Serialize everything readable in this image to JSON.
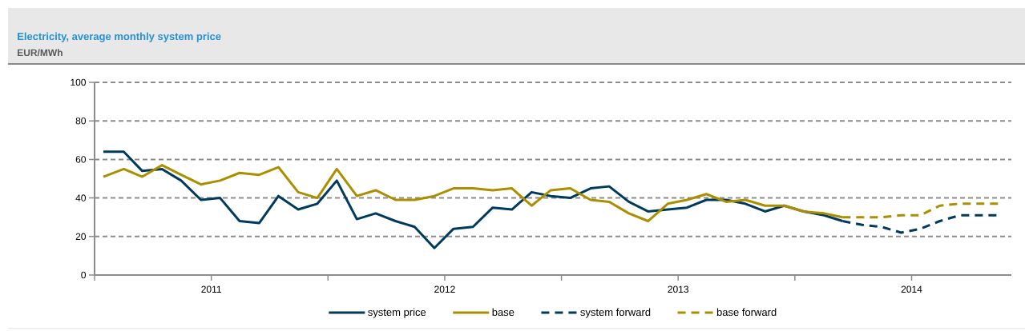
{
  "chart_data": {
    "type": "line",
    "title": "Electricity, average monthly system price",
    "subtitle": "EUR/MWh",
    "xlim": [
      "2011-01-01",
      "2014-12-05"
    ],
    "xticks": [
      {
        "value": "2011-01-01",
        "label": null
      },
      {
        "value": "2011-07-01",
        "label": "2011"
      },
      {
        "value": "2012-01-01",
        "label": null
      },
      {
        "value": "2012-07-01",
        "label": "2012"
      },
      {
        "value": "2013-01-01",
        "label": null
      },
      {
        "value": "2013-07-01",
        "label": "2013"
      },
      {
        "value": "2014-01-01",
        "label": null
      },
      {
        "value": "2014-07-01",
        "label": "2014"
      }
    ],
    "ylim": [
      0,
      100
    ],
    "yticks": [
      0,
      20,
      40,
      60,
      80,
      100
    ],
    "grid": "y",
    "legend": "bottom",
    "series": [
      {
        "name": "system price",
        "color": "#003a5c",
        "line_style": "solid",
        "x": [
          "2011-01-15",
          "2011-02-15",
          "2011-03-15",
          "2011-04-15",
          "2011-05-15",
          "2011-06-15",
          "2011-07-15",
          "2011-08-15",
          "2011-09-15",
          "2011-10-15",
          "2011-11-15",
          "2011-12-15",
          "2012-01-15",
          "2012-02-15",
          "2012-03-15",
          "2012-04-15",
          "2012-05-15",
          "2012-06-15",
          "2012-07-15",
          "2012-08-15",
          "2012-09-15",
          "2012-10-15",
          "2012-11-15",
          "2012-12-15",
          "2013-01-15",
          "2013-02-15",
          "2013-03-15",
          "2013-04-15",
          "2013-05-15",
          "2013-06-15",
          "2013-07-15",
          "2013-08-15",
          "2013-09-15",
          "2013-10-15",
          "2013-11-15",
          "2013-12-15",
          "2014-01-15",
          "2014-02-15",
          "2014-03-15"
        ],
        "values": [
          64,
          64,
          54,
          55,
          49,
          39,
          40,
          28,
          27,
          41,
          34,
          37,
          49,
          29,
          32,
          28,
          25,
          14,
          24,
          25,
          35,
          34,
          43,
          41,
          40,
          45,
          46,
          38,
          33,
          34,
          35,
          39,
          39,
          37,
          33,
          36,
          33,
          31,
          28
        ]
      },
      {
        "name": "base",
        "color": "#ab8f00",
        "line_style": "solid",
        "x": [
          "2011-01-15",
          "2011-02-15",
          "2011-03-15",
          "2011-04-15",
          "2011-05-15",
          "2011-06-15",
          "2011-07-15",
          "2011-08-15",
          "2011-09-15",
          "2011-10-15",
          "2011-11-15",
          "2011-12-15",
          "2012-01-15",
          "2012-02-15",
          "2012-03-15",
          "2012-04-15",
          "2012-05-15",
          "2012-06-15",
          "2012-07-15",
          "2012-08-15",
          "2012-09-15",
          "2012-10-15",
          "2012-11-15",
          "2012-12-15",
          "2013-01-15",
          "2013-02-15",
          "2013-03-15",
          "2013-04-15",
          "2013-05-15",
          "2013-06-15",
          "2013-07-15",
          "2013-08-15",
          "2013-09-15",
          "2013-10-15",
          "2013-11-15",
          "2013-12-15",
          "2014-01-15",
          "2014-02-15",
          "2014-03-15"
        ],
        "values": [
          51,
          55,
          51,
          57,
          52,
          47,
          49,
          53,
          52,
          56,
          43,
          40,
          55,
          41,
          44,
          39,
          39,
          41,
          45,
          45,
          44,
          45,
          36,
          44,
          45,
          39,
          38,
          32,
          28,
          37,
          39,
          42,
          38,
          39,
          36,
          36,
          33,
          32,
          30
        ]
      },
      {
        "name": "system forward",
        "color": "#003a5c",
        "line_style": "dashed",
        "x": [
          "2014-03-15",
          "2014-04-15",
          "2014-05-15",
          "2014-06-15",
          "2014-07-15",
          "2014-08-15",
          "2014-09-15",
          "2014-10-15",
          "2014-11-15"
        ],
        "values": [
          28,
          26,
          25,
          22,
          24,
          28,
          31,
          31,
          31
        ]
      },
      {
        "name": "base forward",
        "color": "#ab8f00",
        "line_style": "dashed",
        "x": [
          "2014-03-15",
          "2014-04-15",
          "2014-05-15",
          "2014-06-15",
          "2014-07-15",
          "2014-08-15",
          "2014-09-15",
          "2014-10-15",
          "2014-11-15"
        ],
        "values": [
          30,
          30,
          30,
          31,
          31,
          36,
          37,
          37,
          37
        ]
      }
    ]
  }
}
